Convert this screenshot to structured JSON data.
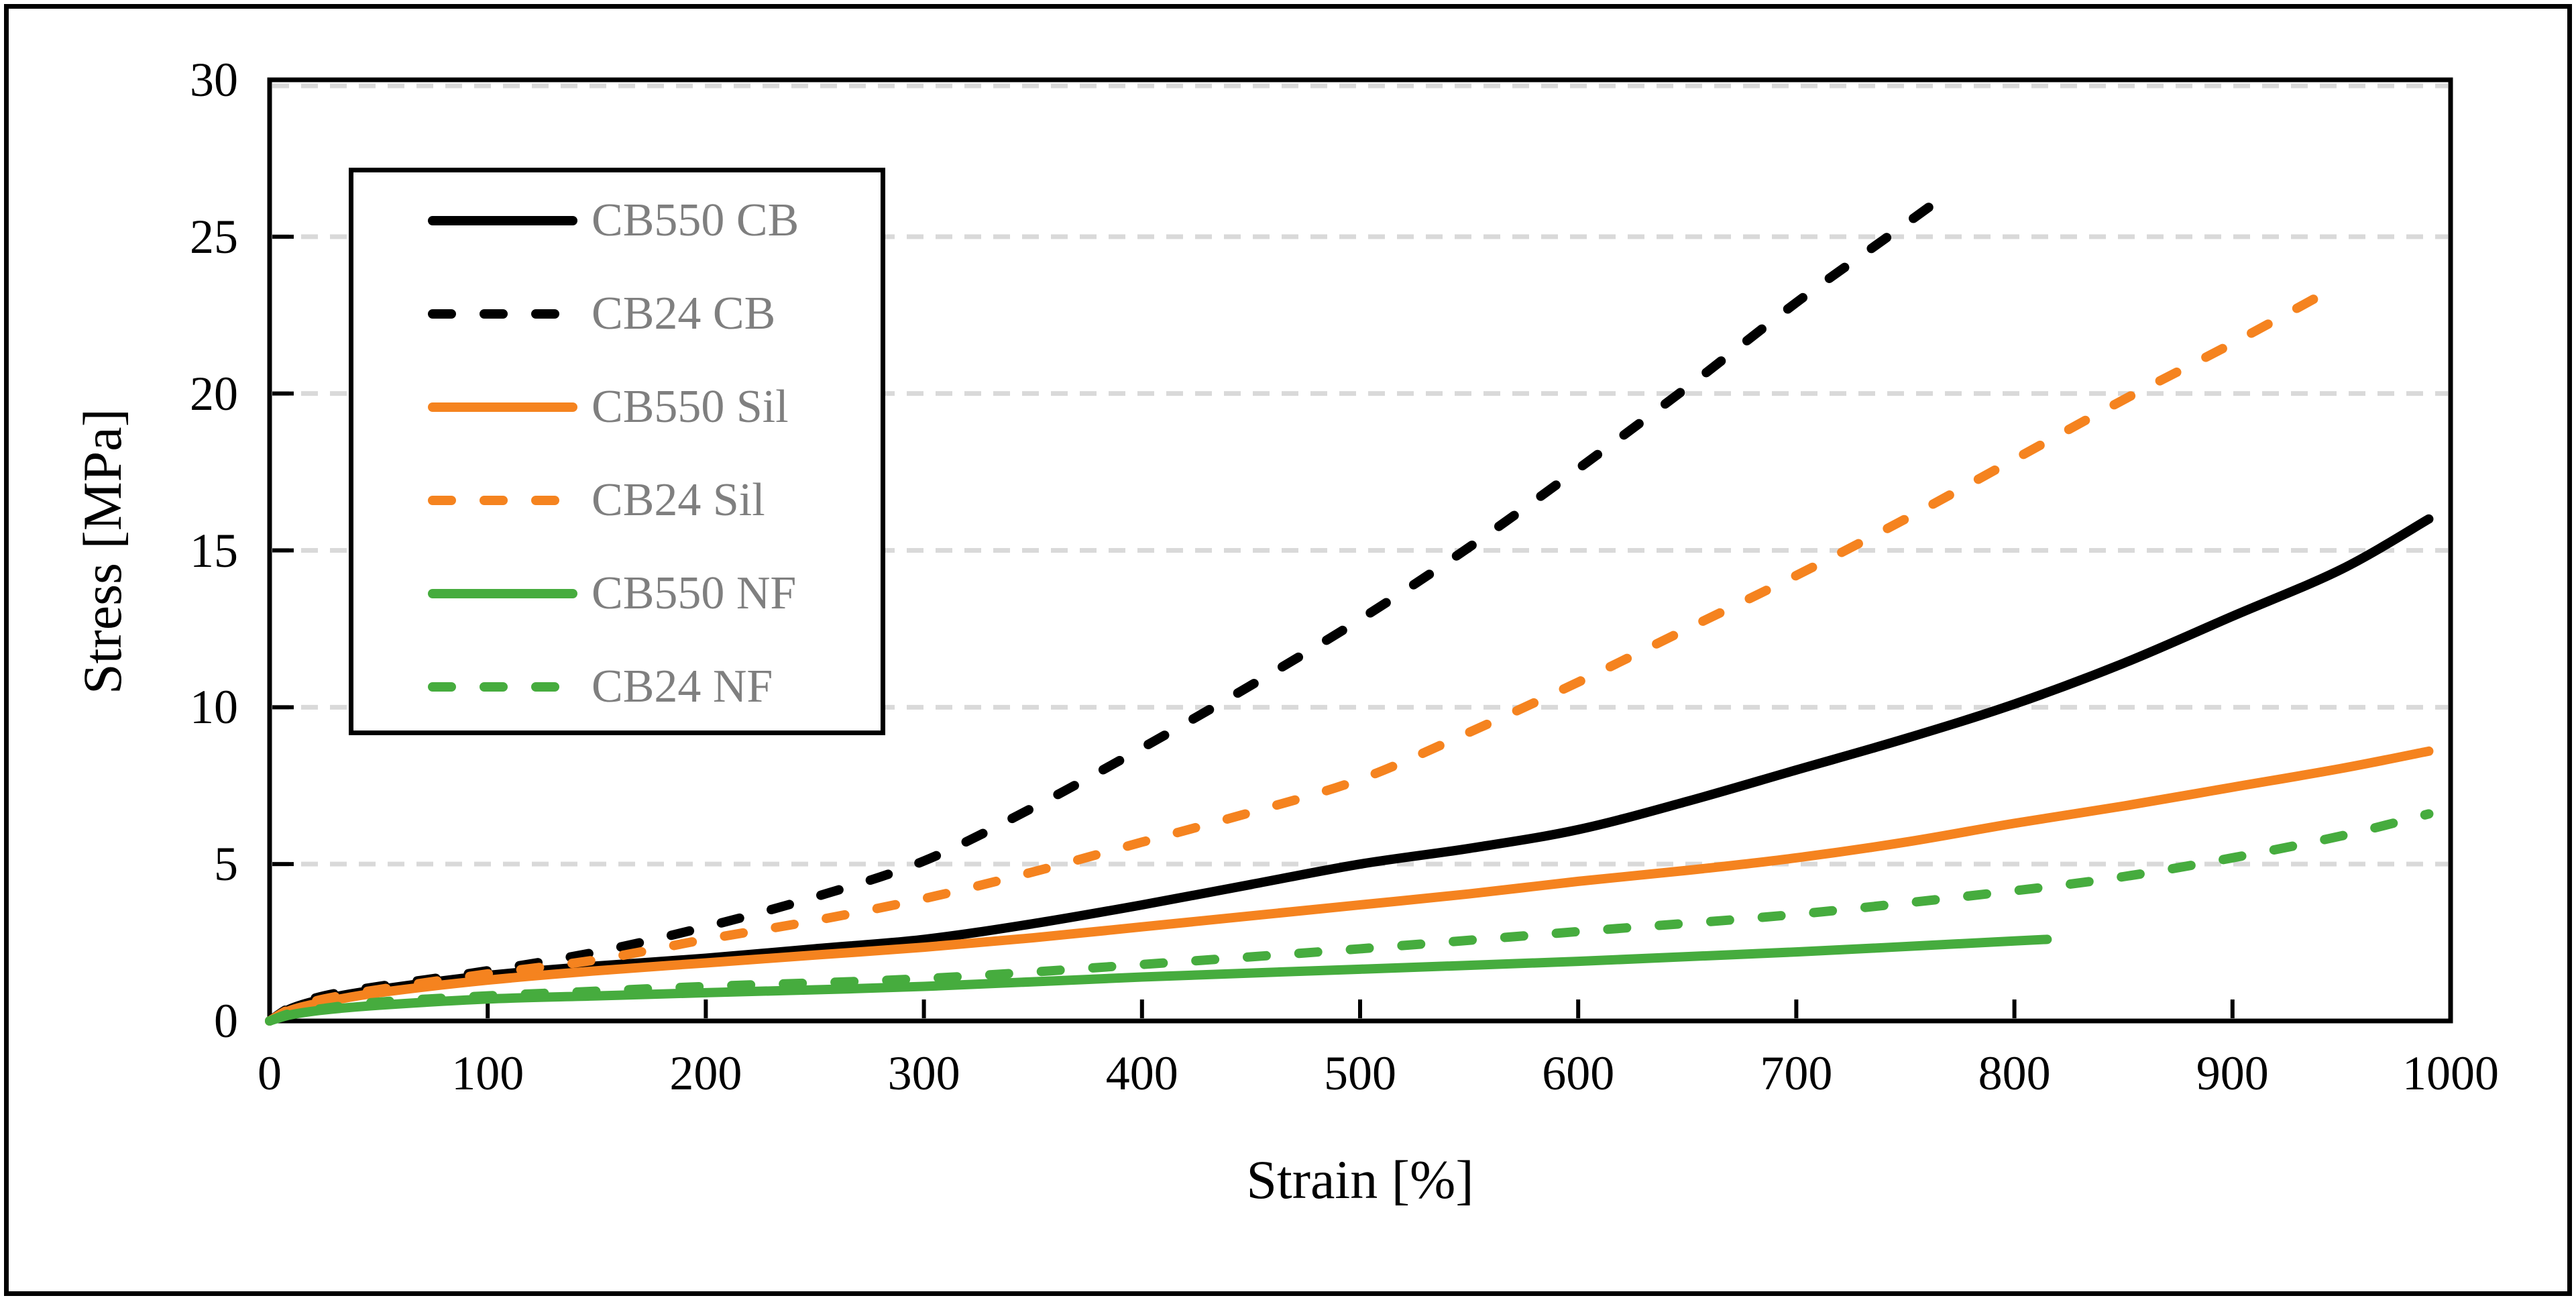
{
  "chart_data": {
    "type": "line",
    "title": "",
    "xlabel": "Strain [%]",
    "ylabel": "Stress [MPa]",
    "xlim": [
      0,
      1000
    ],
    "ylim": [
      0,
      30
    ],
    "x_ticks": [
      "0",
      "100",
      "200",
      "300",
      "400",
      "500",
      "600",
      "700",
      "800",
      "900",
      "1000"
    ],
    "y_ticks": [
      "0",
      "5",
      "10",
      "15",
      "20",
      "25",
      "30"
    ],
    "grid": {
      "axis": "y",
      "interval": 5,
      "line_style": "dashed",
      "color": "#d9d9d9"
    },
    "legend_position": "top-left",
    "series": [
      {
        "name": "CB550 CB",
        "color": "#000000",
        "style": "solid",
        "points": [
          [
            0,
            0
          ],
          [
            10,
            0.4
          ],
          [
            25,
            0.7
          ],
          [
            50,
            1.0
          ],
          [
            100,
            1.45
          ],
          [
            150,
            1.75
          ],
          [
            200,
            2.0
          ],
          [
            250,
            2.3
          ],
          [
            300,
            2.6
          ],
          [
            350,
            3.1
          ],
          [
            400,
            3.7
          ],
          [
            450,
            4.35
          ],
          [
            500,
            5.0
          ],
          [
            550,
            5.5
          ],
          [
            600,
            6.1
          ],
          [
            650,
            7.0
          ],
          [
            700,
            8.0
          ],
          [
            750,
            9.0
          ],
          [
            800,
            10.1
          ],
          [
            850,
            11.4
          ],
          [
            900,
            12.9
          ],
          [
            950,
            14.4
          ],
          [
            990,
            16.0
          ]
        ]
      },
      {
        "name": "CB24 CB",
        "color": "#000000",
        "style": "dashed",
        "points": [
          [
            0,
            0
          ],
          [
            10,
            0.45
          ],
          [
            25,
            0.8
          ],
          [
            50,
            1.1
          ],
          [
            100,
            1.6
          ],
          [
            150,
            2.2
          ],
          [
            200,
            3.0
          ],
          [
            250,
            3.95
          ],
          [
            300,
            5.1
          ],
          [
            350,
            6.8
          ],
          [
            400,
            8.7
          ],
          [
            450,
            10.7
          ],
          [
            500,
            12.8
          ],
          [
            550,
            15.1
          ],
          [
            600,
            17.6
          ],
          [
            650,
            20.2
          ],
          [
            700,
            22.9
          ],
          [
            740,
            24.9
          ],
          [
            770,
            26.4
          ]
        ]
      },
      {
        "name": "CB550 Sil",
        "color": "#f5831f",
        "style": "solid",
        "points": [
          [
            0,
            0
          ],
          [
            10,
            0.35
          ],
          [
            25,
            0.6
          ],
          [
            50,
            0.9
          ],
          [
            100,
            1.3
          ],
          [
            150,
            1.6
          ],
          [
            200,
            1.85
          ],
          [
            250,
            2.1
          ],
          [
            300,
            2.35
          ],
          [
            350,
            2.65
          ],
          [
            400,
            3.0
          ],
          [
            450,
            3.35
          ],
          [
            500,
            3.7
          ],
          [
            550,
            4.05
          ],
          [
            600,
            4.45
          ],
          [
            650,
            4.8
          ],
          [
            700,
            5.2
          ],
          [
            750,
            5.7
          ],
          [
            800,
            6.3
          ],
          [
            850,
            6.85
          ],
          [
            900,
            7.45
          ],
          [
            950,
            8.05
          ],
          [
            990,
            8.6
          ]
        ]
      },
      {
        "name": "CB24 Sil",
        "color": "#f5831f",
        "style": "dashed",
        "points": [
          [
            0,
            0
          ],
          [
            10,
            0.4
          ],
          [
            25,
            0.7
          ],
          [
            50,
            1.0
          ],
          [
            100,
            1.5
          ],
          [
            150,
            1.95
          ],
          [
            200,
            2.6
          ],
          [
            250,
            3.2
          ],
          [
            300,
            3.9
          ],
          [
            350,
            4.75
          ],
          [
            400,
            5.7
          ],
          [
            450,
            6.65
          ],
          [
            500,
            7.7
          ],
          [
            550,
            9.2
          ],
          [
            600,
            10.8
          ],
          [
            650,
            12.5
          ],
          [
            700,
            14.2
          ],
          [
            750,
            16.0
          ],
          [
            800,
            17.9
          ],
          [
            850,
            19.8
          ],
          [
            900,
            21.6
          ],
          [
            950,
            23.5
          ]
        ]
      },
      {
        "name": "CB550 NF",
        "color": "#46ac3e",
        "style": "solid",
        "points": [
          [
            0,
            0
          ],
          [
            10,
            0.2
          ],
          [
            25,
            0.35
          ],
          [
            50,
            0.5
          ],
          [
            100,
            0.7
          ],
          [
            150,
            0.8
          ],
          [
            200,
            0.9
          ],
          [
            300,
            1.1
          ],
          [
            400,
            1.4
          ],
          [
            500,
            1.65
          ],
          [
            600,
            1.9
          ],
          [
            700,
            2.2
          ],
          [
            800,
            2.55
          ],
          [
            815,
            2.6
          ]
        ]
      },
      {
        "name": "CB24 NF",
        "color": "#46ac3e",
        "style": "dashed",
        "points": [
          [
            0,
            0
          ],
          [
            10,
            0.25
          ],
          [
            25,
            0.4
          ],
          [
            50,
            0.6
          ],
          [
            100,
            0.8
          ],
          [
            150,
            0.95
          ],
          [
            200,
            1.1
          ],
          [
            300,
            1.35
          ],
          [
            400,
            1.8
          ],
          [
            500,
            2.3
          ],
          [
            600,
            2.85
          ],
          [
            700,
            3.4
          ],
          [
            800,
            4.15
          ],
          [
            850,
            4.6
          ],
          [
            900,
            5.2
          ],
          [
            950,
            5.9
          ],
          [
            990,
            6.6
          ]
        ]
      }
    ]
  },
  "colors": {
    "background": "#ffffff",
    "frame": "#000000",
    "axis": "#000000",
    "grid": "#d9d9d9",
    "legend_text": "#7f7f7f",
    "orange": "#f5831f",
    "green": "#46ac3e"
  }
}
